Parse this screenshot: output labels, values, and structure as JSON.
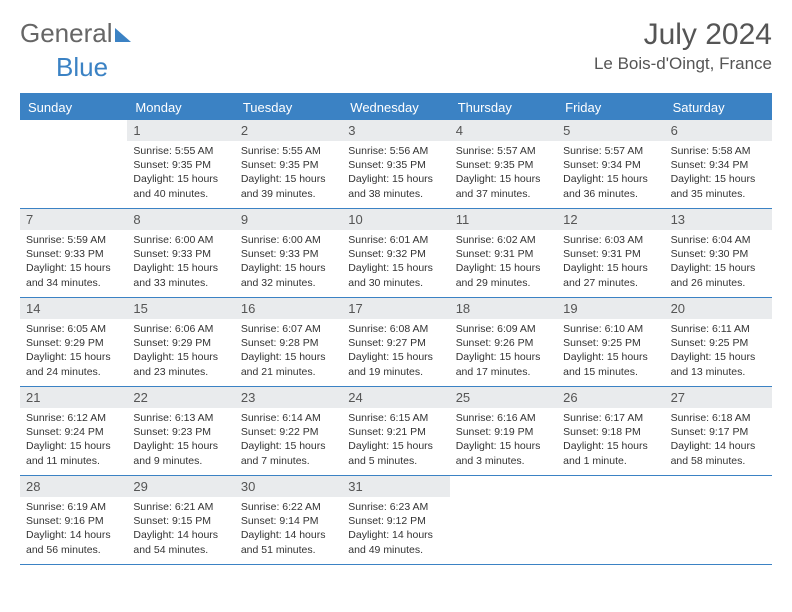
{
  "brand": {
    "word1": "General",
    "word2": "Blue"
  },
  "title": "July 2024",
  "location": "Le Bois-d'Oingt, France",
  "colors": {
    "accent": "#3b82c4",
    "daynum_bg": "#e9ebed",
    "text": "#333333",
    "muted": "#666666",
    "background": "#ffffff"
  },
  "layout": {
    "columns": 7,
    "rows": 5,
    "first_day_column_index": 1,
    "days_in_month": 31
  },
  "dow": [
    "Sunday",
    "Monday",
    "Tuesday",
    "Wednesday",
    "Thursday",
    "Friday",
    "Saturday"
  ],
  "days": [
    {
      "n": 1,
      "sunrise": "5:55 AM",
      "sunset": "9:35 PM",
      "daylight": "15 hours and 40 minutes."
    },
    {
      "n": 2,
      "sunrise": "5:55 AM",
      "sunset": "9:35 PM",
      "daylight": "15 hours and 39 minutes."
    },
    {
      "n": 3,
      "sunrise": "5:56 AM",
      "sunset": "9:35 PM",
      "daylight": "15 hours and 38 minutes."
    },
    {
      "n": 4,
      "sunrise": "5:57 AM",
      "sunset": "9:35 PM",
      "daylight": "15 hours and 37 minutes."
    },
    {
      "n": 5,
      "sunrise": "5:57 AM",
      "sunset": "9:34 PM",
      "daylight": "15 hours and 36 minutes."
    },
    {
      "n": 6,
      "sunrise": "5:58 AM",
      "sunset": "9:34 PM",
      "daylight": "15 hours and 35 minutes."
    },
    {
      "n": 7,
      "sunrise": "5:59 AM",
      "sunset": "9:33 PM",
      "daylight": "15 hours and 34 minutes."
    },
    {
      "n": 8,
      "sunrise": "6:00 AM",
      "sunset": "9:33 PM",
      "daylight": "15 hours and 33 minutes."
    },
    {
      "n": 9,
      "sunrise": "6:00 AM",
      "sunset": "9:33 PM",
      "daylight": "15 hours and 32 minutes."
    },
    {
      "n": 10,
      "sunrise": "6:01 AM",
      "sunset": "9:32 PM",
      "daylight": "15 hours and 30 minutes."
    },
    {
      "n": 11,
      "sunrise": "6:02 AM",
      "sunset": "9:31 PM",
      "daylight": "15 hours and 29 minutes."
    },
    {
      "n": 12,
      "sunrise": "6:03 AM",
      "sunset": "9:31 PM",
      "daylight": "15 hours and 27 minutes."
    },
    {
      "n": 13,
      "sunrise": "6:04 AM",
      "sunset": "9:30 PM",
      "daylight": "15 hours and 26 minutes."
    },
    {
      "n": 14,
      "sunrise": "6:05 AM",
      "sunset": "9:29 PM",
      "daylight": "15 hours and 24 minutes."
    },
    {
      "n": 15,
      "sunrise": "6:06 AM",
      "sunset": "9:29 PM",
      "daylight": "15 hours and 23 minutes."
    },
    {
      "n": 16,
      "sunrise": "6:07 AM",
      "sunset": "9:28 PM",
      "daylight": "15 hours and 21 minutes."
    },
    {
      "n": 17,
      "sunrise": "6:08 AM",
      "sunset": "9:27 PM",
      "daylight": "15 hours and 19 minutes."
    },
    {
      "n": 18,
      "sunrise": "6:09 AM",
      "sunset": "9:26 PM",
      "daylight": "15 hours and 17 minutes."
    },
    {
      "n": 19,
      "sunrise": "6:10 AM",
      "sunset": "9:25 PM",
      "daylight": "15 hours and 15 minutes."
    },
    {
      "n": 20,
      "sunrise": "6:11 AM",
      "sunset": "9:25 PM",
      "daylight": "15 hours and 13 minutes."
    },
    {
      "n": 21,
      "sunrise": "6:12 AM",
      "sunset": "9:24 PM",
      "daylight": "15 hours and 11 minutes."
    },
    {
      "n": 22,
      "sunrise": "6:13 AM",
      "sunset": "9:23 PM",
      "daylight": "15 hours and 9 minutes."
    },
    {
      "n": 23,
      "sunrise": "6:14 AM",
      "sunset": "9:22 PM",
      "daylight": "15 hours and 7 minutes."
    },
    {
      "n": 24,
      "sunrise": "6:15 AM",
      "sunset": "9:21 PM",
      "daylight": "15 hours and 5 minutes."
    },
    {
      "n": 25,
      "sunrise": "6:16 AM",
      "sunset": "9:19 PM",
      "daylight": "15 hours and 3 minutes."
    },
    {
      "n": 26,
      "sunrise": "6:17 AM",
      "sunset": "9:18 PM",
      "daylight": "15 hours and 1 minute."
    },
    {
      "n": 27,
      "sunrise": "6:18 AM",
      "sunset": "9:17 PM",
      "daylight": "14 hours and 58 minutes."
    },
    {
      "n": 28,
      "sunrise": "6:19 AM",
      "sunset": "9:16 PM",
      "daylight": "14 hours and 56 minutes."
    },
    {
      "n": 29,
      "sunrise": "6:21 AM",
      "sunset": "9:15 PM",
      "daylight": "14 hours and 54 minutes."
    },
    {
      "n": 30,
      "sunrise": "6:22 AM",
      "sunset": "9:14 PM",
      "daylight": "14 hours and 51 minutes."
    },
    {
      "n": 31,
      "sunrise": "6:23 AM",
      "sunset": "9:12 PM",
      "daylight": "14 hours and 49 minutes."
    }
  ],
  "labels": {
    "sunrise_prefix": "Sunrise: ",
    "sunset_prefix": "Sunset: ",
    "daylight_prefix": "Daylight: "
  }
}
